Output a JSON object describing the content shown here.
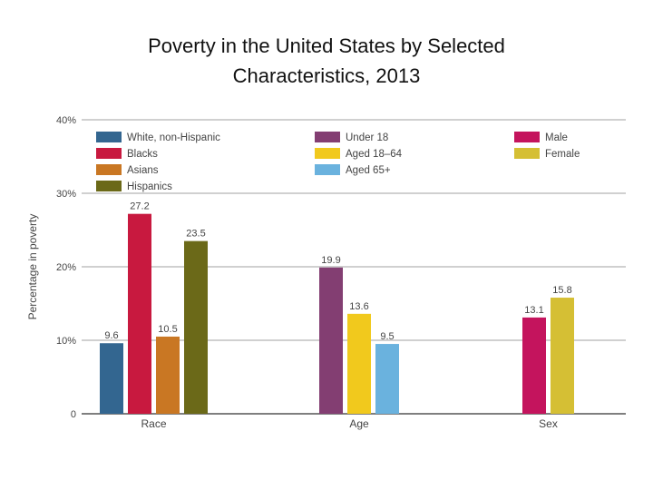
{
  "slide": {
    "title_line1": "Poverty in the United States by Selected",
    "title_line2": "Characteristics, 2013"
  },
  "chart_data": {
    "type": "bar",
    "title": "Poverty in the United States by Selected Characteristics, 2013",
    "xlabel": "",
    "ylabel": "Percentage in poverty",
    "ylim": [
      0,
      40
    ],
    "y_ticks": [
      {
        "value": 0,
        "label": "0"
      },
      {
        "value": 10,
        "label": "10%"
      },
      {
        "value": 20,
        "label": "20%"
      },
      {
        "value": 30,
        "label": "30%"
      },
      {
        "value": 40,
        "label": "40%"
      }
    ],
    "grid": true,
    "legend_position": "top",
    "groups": [
      {
        "name": "Race",
        "bars": [
          {
            "label": "White, non-Hispanic",
            "value": 9.6,
            "value_label": "9.6",
            "color": "#336690"
          },
          {
            "label": "Blacks",
            "value": 27.2,
            "value_label": "27.2",
            "color": "#c8193f"
          },
          {
            "label": "Asians",
            "value": 10.5,
            "value_label": "10.5",
            "color": "#c97723"
          },
          {
            "label": "Hispanics",
            "value": 23.5,
            "value_label": "23.5",
            "color": "#6b6918"
          }
        ]
      },
      {
        "name": "Age",
        "bars": [
          {
            "label": "Under 18",
            "value": 19.9,
            "value_label": "19.9",
            "color": "#833e72"
          },
          {
            "label": "Aged 18–64",
            "value": 13.6,
            "value_label": "13.6",
            "color": "#f1c91d"
          },
          {
            "label": "Aged 65+",
            "value": 9.5,
            "value_label": "9.5",
            "color": "#6ab2de"
          }
        ]
      },
      {
        "name": "Sex",
        "bars": [
          {
            "label": "Male",
            "value": 13.1,
            "value_label": "13.1",
            "color": "#c4145d"
          },
          {
            "label": "Female",
            "value": 15.8,
            "value_label": "15.8",
            "color": "#d5bf34"
          }
        ]
      }
    ]
  }
}
